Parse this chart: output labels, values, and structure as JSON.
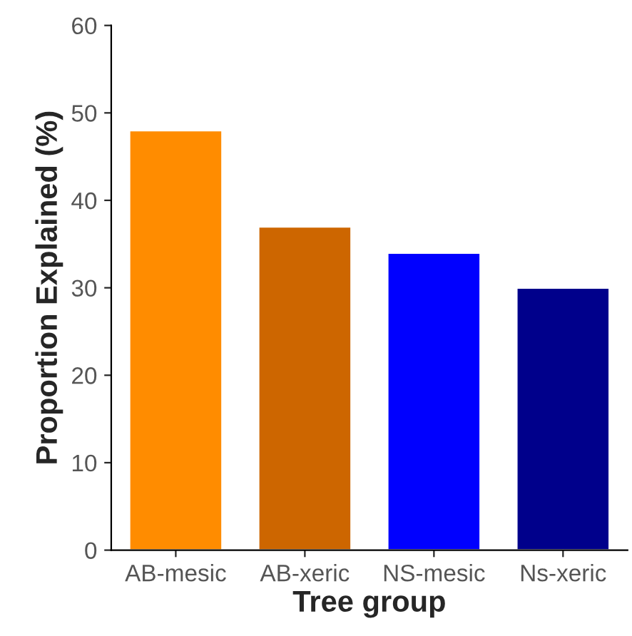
{
  "chart_data": {
    "type": "bar",
    "xlabel": "Tree group",
    "ylabel": "Proportion Explained (%)",
    "categories": [
      "AB-mesic",
      "AB-xeric",
      "NS-mesic",
      "Ns-xeric"
    ],
    "values": [
      48,
      37,
      34,
      30
    ],
    "colors": [
      "#ff8c00",
      "#cd6600",
      "#0000ff",
      "#00008b"
    ],
    "ylim": [
      0,
      60
    ],
    "yticks": [
      0,
      10,
      20,
      30,
      40,
      50,
      60
    ],
    "grid": false,
    "legend": false
  }
}
